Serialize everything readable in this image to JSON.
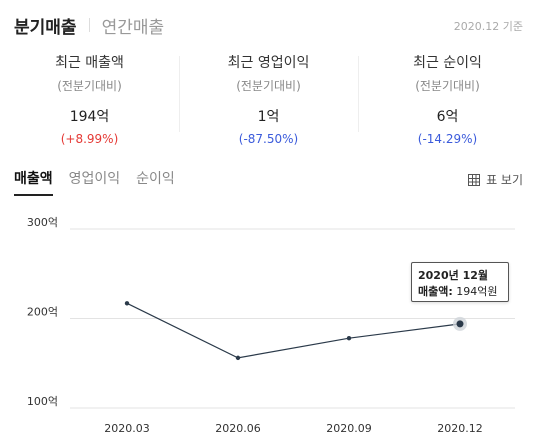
{
  "header": {
    "tabs": [
      {
        "label": "분기매출",
        "active": true
      },
      {
        "label": "연간매출",
        "active": false
      }
    ],
    "as_of": "2020.12 기준"
  },
  "summary": [
    {
      "title": "최근 매출액",
      "sub": "(전분기대비)",
      "value": "194억",
      "change": "(+8.99%)",
      "direction": "up"
    },
    {
      "title": "최근 영업이익",
      "sub": "(전분기대비)",
      "value": "1억",
      "change": "(-87.50%)",
      "direction": "down"
    },
    {
      "title": "최근 순이익",
      "sub": "(전분기대비)",
      "value": "6억",
      "change": "(-14.29%)",
      "direction": "down"
    }
  ],
  "metric_tabs": [
    {
      "label": "매출액",
      "active": true
    },
    {
      "label": "영업이익",
      "active": false
    },
    {
      "label": "순이익",
      "active": false
    }
  ],
  "table_view_label": "표 보기",
  "colors": {
    "up": "#e53935",
    "down": "#3b5bdb",
    "line": "#2b3a4a"
  },
  "chart_data": {
    "type": "line",
    "categories": [
      "2020.03",
      "2020.06",
      "2020.09",
      "2020.12"
    ],
    "series": [
      {
        "values": [
          217,
          156,
          178,
          194
        ]
      }
    ],
    "yticks": [
      {
        "value": 100,
        "label": "100억"
      },
      {
        "value": 200,
        "label": "200억"
      },
      {
        "value": 300,
        "label": "300억"
      }
    ],
    "ylim": [
      100,
      300
    ],
    "grid": true,
    "highlight_index": 3
  },
  "tooltip": {
    "title": "2020년 12월",
    "label": "매출액:",
    "value": "194억원"
  }
}
